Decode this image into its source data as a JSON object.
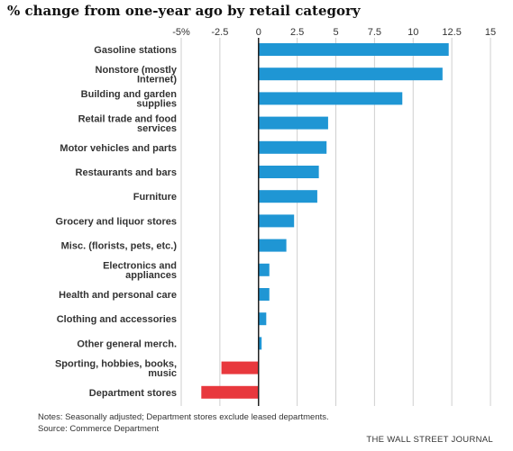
{
  "title": "% change from one-year ago by retail category",
  "notes": "Notes: Seasonally adjusted; Department stores exclude leased departments.",
  "source": "Source: Commerce Department",
  "credit": "THE WALL STREET JOURNAL",
  "colors": {
    "positive": "#1f96d4",
    "negative": "#e8383d",
    "grid": "#cfcfcf",
    "zero_line": "#222222"
  },
  "chart_data": {
    "type": "bar",
    "orientation": "horizontal",
    "title": "% change from one-year ago by retail category",
    "xlim": [
      -5,
      15
    ],
    "x_ticks": [
      -5,
      -2.5,
      0,
      2.5,
      5,
      7.5,
      10,
      12.5,
      15
    ],
    "x_tick_labels": [
      "-5%",
      "-2.5",
      "0",
      "2.5",
      "5",
      "7.5",
      "10",
      "12.5",
      "15"
    ],
    "tick_position": "top",
    "grid": true,
    "categories": [
      [
        "Gasoline stations"
      ],
      [
        "Nonstore (mostly",
        "Internet)"
      ],
      [
        "Building and garden",
        "supplies"
      ],
      [
        "Retail trade and food",
        "services"
      ],
      [
        "Motor vehicles and parts"
      ],
      [
        "Restaurants and bars"
      ],
      [
        "Furniture"
      ],
      [
        "Grocery and liquor stores"
      ],
      [
        "Misc. (florists, pets, etc.)"
      ],
      [
        "Electronics and",
        "appliances"
      ],
      [
        "Health and personal care"
      ],
      [
        "Clothing and accessories"
      ],
      [
        "Other general merch."
      ],
      [
        "Sporting, hobbies, books,",
        "music"
      ],
      [
        "Department stores"
      ]
    ],
    "values": [
      12.3,
      11.9,
      9.3,
      4.5,
      4.4,
      3.9,
      3.8,
      2.3,
      1.8,
      0.7,
      0.7,
      0.5,
      0.2,
      -2.4,
      -3.7
    ]
  }
}
